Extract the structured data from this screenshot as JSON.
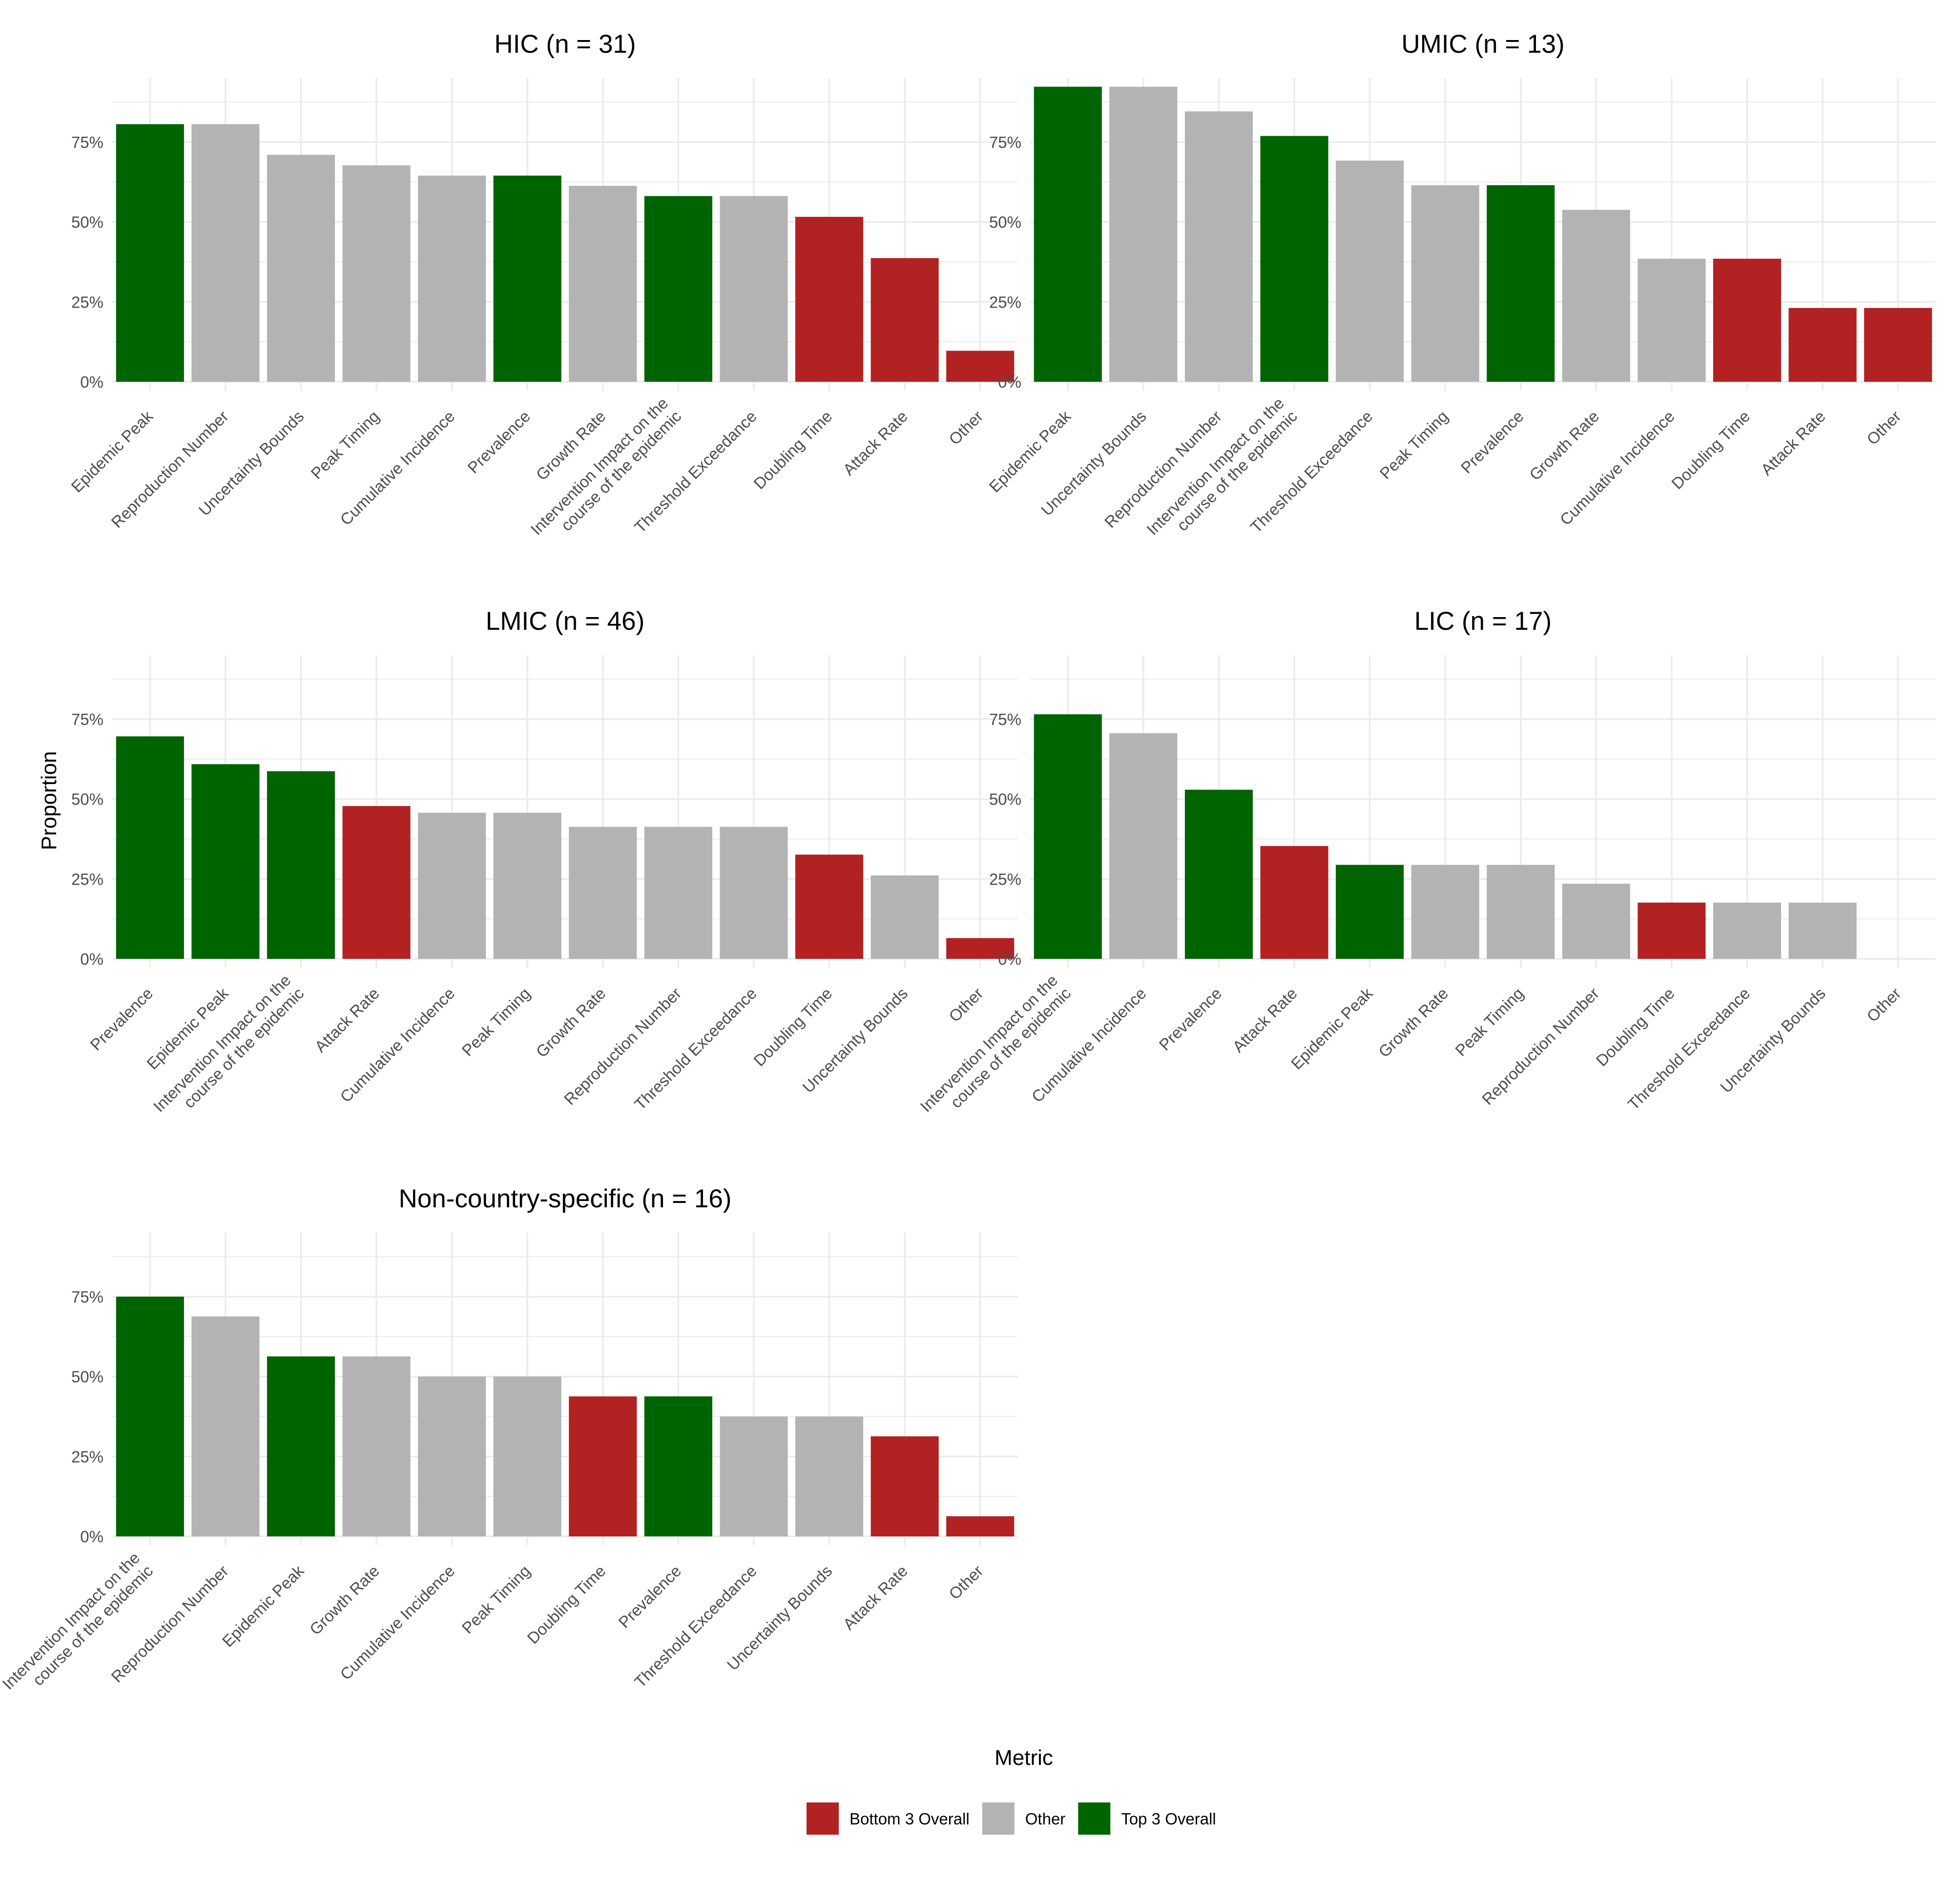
{
  "colors": {
    "Top 3 Overall": "#006400",
    "Other": "#b3b3b3",
    "Bottom 3 Overall": "#b22222",
    "grid": "#ebebeb",
    "text": "#4d4d4d"
  },
  "ylabel": "Proportion",
  "legend": {
    "title": "Metric",
    "items": [
      "Bottom 3 Overall",
      "Other",
      "Top 3 Overall"
    ]
  },
  "chart_data": [
    {
      "type": "bar",
      "title": "HIC (n = 31)",
      "ylim": [
        0,
        0.95
      ],
      "yticks": [
        "0%",
        "25%",
        "50%",
        "75%"
      ],
      "categories": [
        "Epidemic Peak",
        "Reproduction Number",
        "Uncertainty Bounds",
        "Peak Timing",
        "Cumulative Incidence",
        "Prevalence",
        "Growth Rate",
        "Intervention Impact on the course of the epidemic",
        "Threshold Exceedance",
        "Doubling Time",
        "Attack Rate",
        "Other"
      ],
      "values": [
        0.806,
        0.806,
        0.71,
        0.677,
        0.645,
        0.645,
        0.613,
        0.581,
        0.581,
        0.516,
        0.387,
        0.097
      ],
      "groups": [
        "Top 3 Overall",
        "Other",
        "Other",
        "Other",
        "Other",
        "Top 3 Overall",
        "Other",
        "Top 3 Overall",
        "Other",
        "Bottom 3 Overall",
        "Bottom 3 Overall",
        "Bottom 3 Overall"
      ]
    },
    {
      "type": "bar",
      "title": "UMIC (n = 13)",
      "ylim": [
        0,
        0.95
      ],
      "yticks": [
        "0%",
        "25%",
        "50%",
        "75%"
      ],
      "categories": [
        "Epidemic Peak",
        "Uncertainty Bounds",
        "Reproduction Number",
        "Intervention Impact on the course of the epidemic",
        "Threshold Exceedance",
        "Peak Timing",
        "Prevalence",
        "Growth Rate",
        "Cumulative Incidence",
        "Doubling Time",
        "Attack Rate",
        "Other"
      ],
      "values": [
        0.923,
        0.923,
        0.846,
        0.769,
        0.692,
        0.615,
        0.615,
        0.538,
        0.385,
        0.385,
        0.231,
        0.231
      ],
      "groups": [
        "Top 3 Overall",
        "Other",
        "Other",
        "Top 3 Overall",
        "Other",
        "Other",
        "Top 3 Overall",
        "Other",
        "Other",
        "Bottom 3 Overall",
        "Bottom 3 Overall",
        "Bottom 3 Overall"
      ]
    },
    {
      "type": "bar",
      "title": "LMIC (n = 46)",
      "ylim": [
        0,
        0.95
      ],
      "yticks": [
        "0%",
        "25%",
        "50%",
        "75%"
      ],
      "categories": [
        "Prevalence",
        "Epidemic Peak",
        "Intervention Impact on the course of the epidemic",
        "Attack Rate",
        "Cumulative Incidence",
        "Peak Timing",
        "Growth Rate",
        "Reproduction Number",
        "Threshold Exceedance",
        "Doubling Time",
        "Uncertainty Bounds",
        "Other"
      ],
      "values": [
        0.696,
        0.609,
        0.587,
        0.478,
        0.457,
        0.457,
        0.413,
        0.413,
        0.413,
        0.326,
        0.261,
        0.065
      ],
      "groups": [
        "Top 3 Overall",
        "Top 3 Overall",
        "Top 3 Overall",
        "Bottom 3 Overall",
        "Other",
        "Other",
        "Other",
        "Other",
        "Other",
        "Bottom 3 Overall",
        "Other",
        "Bottom 3 Overall"
      ]
    },
    {
      "type": "bar",
      "title": "LIC (n = 17)",
      "ylim": [
        0,
        0.95
      ],
      "yticks": [
        "0%",
        "25%",
        "50%",
        "75%"
      ],
      "categories": [
        "Intervention Impact on the course of the epidemic",
        "Cumulative Incidence",
        "Prevalence",
        "Attack Rate",
        "Epidemic Peak",
        "Growth Rate",
        "Peak Timing",
        "Reproduction Number",
        "Doubling Time",
        "Threshold Exceedance",
        "Uncertainty Bounds",
        "Other"
      ],
      "values": [
        0.765,
        0.706,
        0.529,
        0.353,
        0.294,
        0.294,
        0.294,
        0.235,
        0.176,
        0.176,
        0.176,
        0
      ],
      "groups": [
        "Top 3 Overall",
        "Other",
        "Top 3 Overall",
        "Bottom 3 Overall",
        "Top 3 Overall",
        "Other",
        "Other",
        "Other",
        "Bottom 3 Overall",
        "Other",
        "Other",
        "Bottom 3 Overall"
      ]
    },
    {
      "type": "bar",
      "title": "Non-country-specific (n = 16)",
      "ylim": [
        0,
        0.95
      ],
      "yticks": [
        "0%",
        "25%",
        "50%",
        "75%"
      ],
      "categories": [
        "Intervention Impact on the course of the epidemic",
        "Reproduction Number",
        "Epidemic Peak",
        "Growth Rate",
        "Cumulative Incidence",
        "Peak Timing",
        "Doubling Time",
        "Prevalence",
        "Threshold Exceedance",
        "Uncertainty Bounds",
        "Attack Rate",
        "Other"
      ],
      "values": [
        0.75,
        0.688,
        0.563,
        0.563,
        0.5,
        0.5,
        0.438,
        0.438,
        0.375,
        0.375,
        0.313,
        0.063
      ],
      "groups": [
        "Top 3 Overall",
        "Other",
        "Top 3 Overall",
        "Other",
        "Other",
        "Other",
        "Bottom 3 Overall",
        "Top 3 Overall",
        "Other",
        "Other",
        "Bottom 3 Overall",
        "Bottom 3 Overall"
      ]
    }
  ]
}
